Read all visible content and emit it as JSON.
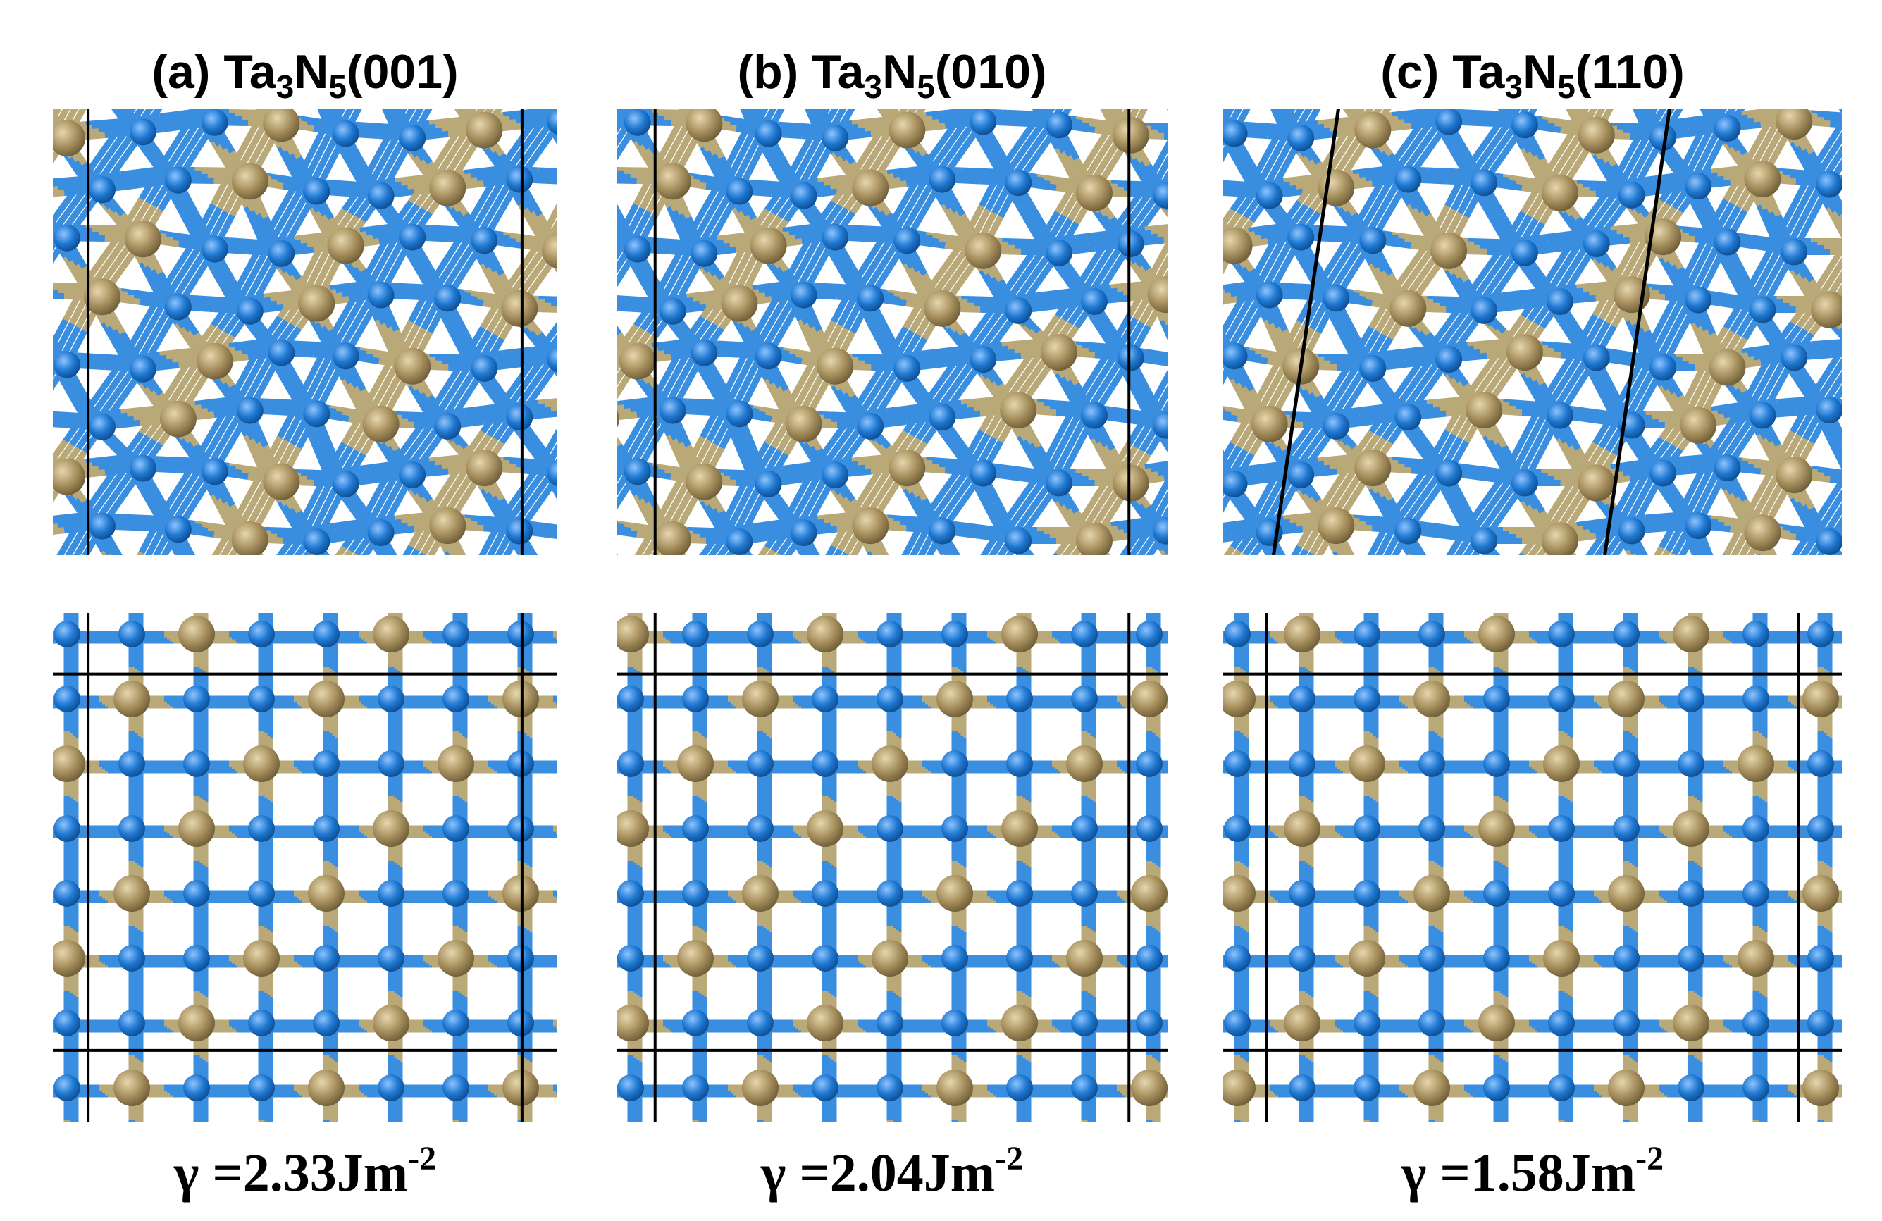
{
  "panels": [
    {
      "label": {
        "prefix": "(a) Ta",
        "ta_count": 3,
        "nitrogen": "N",
        "n_count": 5,
        "facet": "(001)"
      },
      "surface_energy": {
        "symbol": "γ =",
        "value": 2.33,
        "unit": "Jm",
        "exponent": "-2"
      }
    },
    {
      "label": {
        "prefix": "(b) Ta",
        "ta_count": 3,
        "nitrogen": "N",
        "n_count": 5,
        "facet": "(010)"
      },
      "surface_energy": {
        "symbol": "γ =",
        "value": 2.04,
        "unit": "Jm",
        "exponent": "-2"
      }
    },
    {
      "label": {
        "prefix": "(c) Ta",
        "ta_count": 3,
        "nitrogen": "N",
        "n_count": 5,
        "facet": "(110)"
      },
      "surface_energy": {
        "symbol": "γ =",
        "value": 1.58,
        "unit": "Jm",
        "exponent": "-2"
      }
    }
  ]
}
